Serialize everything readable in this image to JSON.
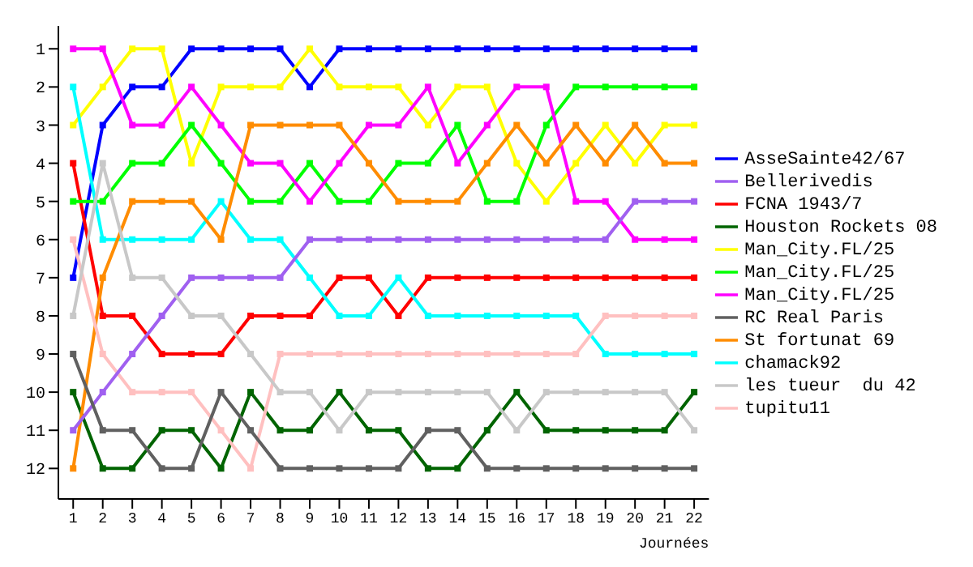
{
  "chart_data": {
    "type": "line",
    "xlabel": "Journées",
    "x": [
      1,
      2,
      3,
      4,
      5,
      6,
      7,
      8,
      9,
      10,
      11,
      12,
      13,
      14,
      15,
      16,
      17,
      18,
      19,
      20,
      21,
      22
    ],
    "xlim": [
      0.5,
      22.5
    ],
    "xticks": [
      1,
      2,
      3,
      4,
      5,
      6,
      7,
      8,
      9,
      10,
      11,
      12,
      13,
      14,
      15,
      16,
      17,
      18,
      19,
      20,
      21,
      22
    ],
    "ylim": [
      12.8,
      0.4
    ],
    "yticks": [
      1,
      2,
      3,
      4,
      5,
      6,
      7,
      8,
      9,
      10,
      11,
      12
    ],
    "grid": false,
    "legend": "right",
    "marker": "square",
    "line_style": "solid",
    "series": [
      {
        "name": "AsseSainte42/67",
        "color": "#0000ff",
        "values": [
          7,
          3,
          2,
          2,
          1,
          1,
          1,
          1,
          2,
          1,
          1,
          1,
          1,
          1,
          1,
          1,
          1,
          1,
          1,
          1,
          1,
          1
        ]
      },
      {
        "name": "FCNA 1943/7",
        "color": "#ff0000",
        "values": [
          4,
          8,
          8,
          9,
          9,
          9,
          8,
          8,
          8,
          7,
          7,
          8,
          7,
          7,
          7,
          7,
          7,
          7,
          7,
          7,
          7,
          7
        ]
      },
      {
        "name": "Man_City.FL/25",
        "color": "#ffff00",
        "values": [
          3,
          2,
          1,
          1,
          4,
          2,
          2,
          2,
          1,
          2,
          2,
          2,
          3,
          2,
          2,
          4,
          5,
          4,
          3,
          4,
          3,
          3
        ]
      },
      {
        "name": "Man_City.FL/25",
        "color": "#00ff00",
        "values": [
          5,
          5,
          4,
          4,
          3,
          4,
          5,
          5,
          4,
          5,
          5,
          4,
          4,
          3,
          5,
          5,
          3,
          2,
          2,
          2,
          2,
          2
        ]
      },
      {
        "name": "Man_City.FL/25",
        "color": "#ff00ff",
        "values": [
          1,
          1,
          3,
          3,
          2,
          3,
          4,
          4,
          5,
          4,
          3,
          3,
          2,
          4,
          3,
          2,
          2,
          5,
          5,
          6,
          6,
          6
        ]
      },
      {
        "name": "chamack92",
        "color": "#00ffff",
        "values": [
          2,
          6,
          6,
          6,
          6,
          5,
          6,
          6,
          7,
          8,
          8,
          7,
          8,
          8,
          8,
          8,
          8,
          8,
          9,
          9,
          9,
          9
        ]
      },
      {
        "name": "Houston Rockets 08",
        "color": "#006400",
        "values": [
          10,
          12,
          12,
          11,
          11,
          12,
          10,
          11,
          11,
          10,
          11,
          11,
          12,
          12,
          11,
          10,
          11,
          11,
          11,
          11,
          11,
          10
        ]
      },
      {
        "name": "St fortunat 69",
        "color": "#ff8c00",
        "values": [
          12,
          7,
          5,
          5,
          5,
          6,
          3,
          3,
          3,
          3,
          4,
          5,
          5,
          5,
          4,
          3,
          4,
          3,
          4,
          3,
          4,
          4
        ]
      },
      {
        "name": "tupitu11",
        "color": "#ffc0c0",
        "values": [
          6,
          9,
          10,
          10,
          10,
          11,
          12,
          9,
          9,
          9,
          9,
          9,
          9,
          9,
          9,
          9,
          9,
          9,
          8,
          8,
          8,
          8
        ]
      },
      {
        "name": "Bellerivedis",
        "color": "#a060f0",
        "values": [
          11,
          10,
          9,
          8,
          7,
          7,
          7,
          7,
          6,
          6,
          6,
          6,
          6,
          6,
          6,
          6,
          6,
          6,
          6,
          5,
          5,
          5
        ]
      },
      {
        "name": "RC Real Paris",
        "color": "#606060",
        "values": [
          9,
          11,
          11,
          12,
          12,
          10,
          11,
          12,
          12,
          12,
          12,
          12,
          11,
          11,
          12,
          12,
          12,
          12,
          12,
          12,
          12,
          12
        ]
      },
      {
        "name": "les tueur  du 42",
        "color": "#c8c8c8",
        "values": [
          8,
          4,
          7,
          7,
          8,
          8,
          9,
          10,
          10,
          11,
          10,
          10,
          10,
          10,
          10,
          11,
          10,
          10,
          10,
          10,
          10,
          11
        ]
      }
    ]
  }
}
